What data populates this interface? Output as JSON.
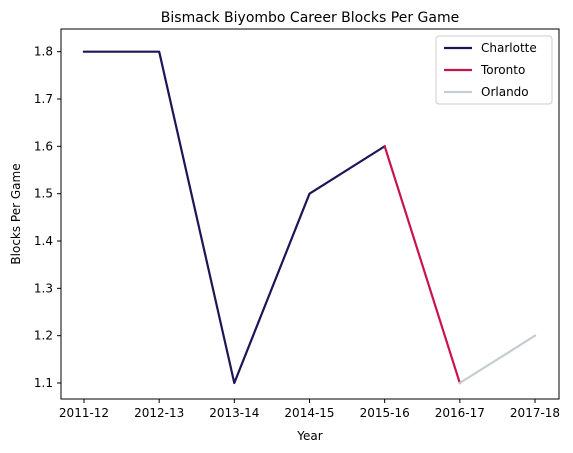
{
  "chart_data": {
    "type": "line",
    "title": "Bismack Biyombo Career Blocks Per Game",
    "xlabel": "Year",
    "ylabel": "Blocks Per Game",
    "categories": [
      "2011-12",
      "2012-13",
      "2013-14",
      "2014-15",
      "2015-16",
      "2016-17",
      "2017-18"
    ],
    "yticks": [
      "1.1",
      "1.2",
      "1.3",
      "1.4",
      "1.5",
      "1.6",
      "1.7",
      "1.8"
    ],
    "ylim": [
      1.065,
      1.835
    ],
    "grid": false,
    "legend_position": "top-right",
    "series": [
      {
        "name": "Charlotte",
        "color": "#1c1656",
        "x": [
          "2011-12",
          "2012-13",
          "2013-14",
          "2014-15",
          "2015-16"
        ],
        "values": [
          1.8,
          1.8,
          1.1,
          1.5,
          1.6
        ]
      },
      {
        "name": "Toronto",
        "color": "#c8144a",
        "x": [
          "2015-16",
          "2016-17"
        ],
        "values": [
          1.6,
          1.1
        ]
      },
      {
        "name": "Orlando",
        "color": "#c4ced4",
        "x": [
          "2016-17",
          "2017-18"
        ],
        "values": [
          1.1,
          1.2
        ]
      }
    ]
  }
}
